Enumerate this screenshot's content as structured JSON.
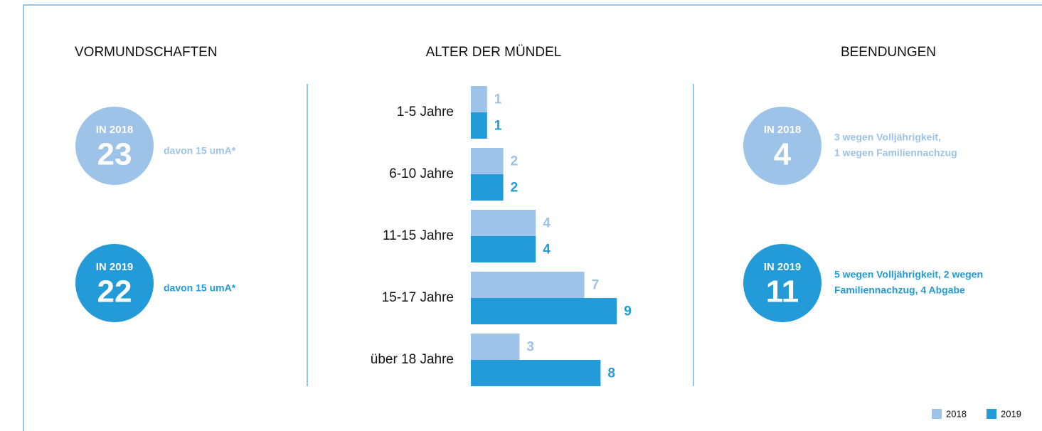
{
  "panels": {
    "left": {
      "title": "VORMUNDSCHAFTEN",
      "items": [
        {
          "label": "IN 2018",
          "number": 23,
          "note": [
            "davon 15 umA*"
          ]
        },
        {
          "label": "IN 2019",
          "number": 22,
          "note": [
            "davon 15 umA*"
          ]
        }
      ]
    },
    "right": {
      "title": "BEENDUNGEN",
      "items": [
        {
          "label": "IN 2018",
          "number": 4,
          "note": [
            "3 wegen Volljährigkeit,",
            "1 wegen Familiennachzug"
          ]
        },
        {
          "label": "IN 2019",
          "number": 11,
          "note": [
            "5 wegen Volljährigkeit, 2 wegen",
            "Familiennachzug, 4 Abgabe"
          ]
        }
      ]
    }
  },
  "chart_data": {
    "type": "bar",
    "orientation": "horizontal",
    "title": "ALTER DER MÜNDEL",
    "categories": [
      "1-5 Jahre",
      "6-10 Jahre",
      "11-15 Jahre",
      "15-17 Jahre",
      "über 18 Jahre"
    ],
    "series": [
      {
        "name": "2018",
        "color": "#9dc3e8",
        "values": [
          1,
          2,
          4,
          7,
          3
        ]
      },
      {
        "name": "2019",
        "color": "#229bd8",
        "values": [
          1,
          2,
          4,
          9,
          8
        ]
      }
    ],
    "data_labels": true,
    "legend": "bottom-right"
  }
}
